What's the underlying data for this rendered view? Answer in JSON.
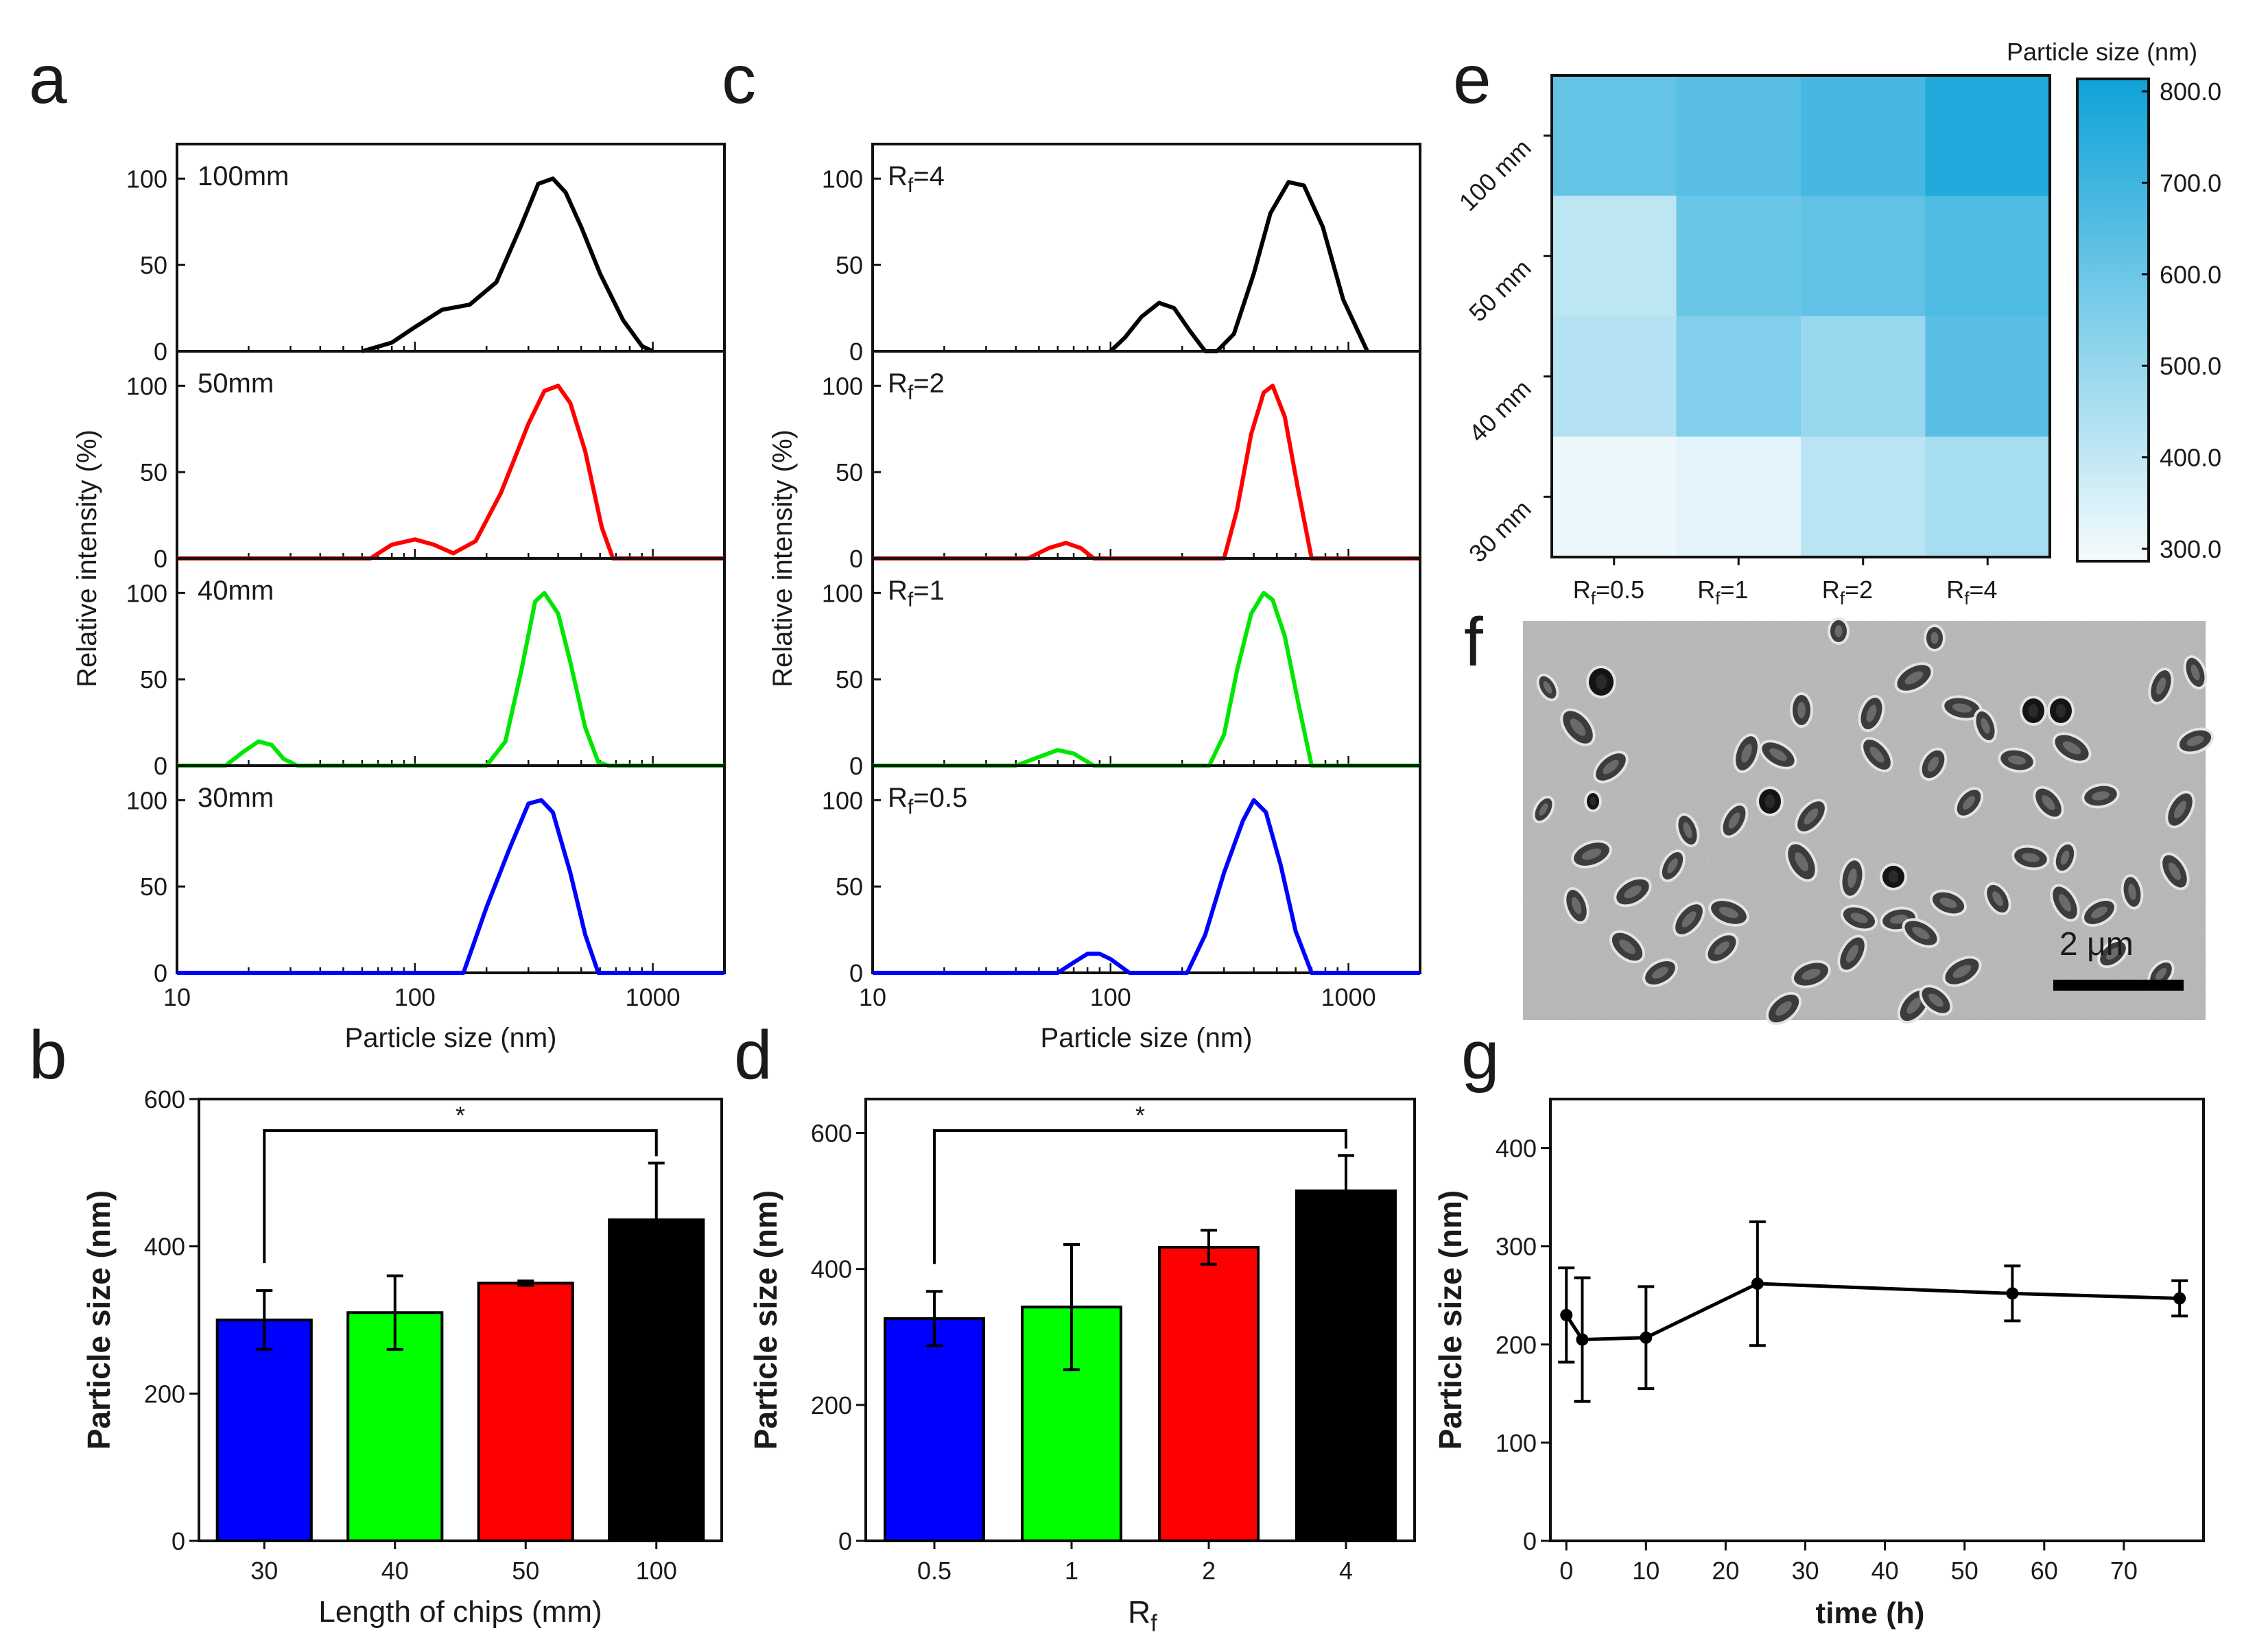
{
  "panel_labels": {
    "a": "a",
    "b": "b",
    "c": "c",
    "d": "d",
    "e": "e",
    "f": "f",
    "g": "g"
  },
  "chart_data": [
    {
      "panel": "a",
      "type": "line",
      "xscale": "log",
      "xlim": [
        10,
        2000
      ],
      "ylim": [
        0,
        120
      ],
      "xticks": [
        "10",
        "100",
        "1000"
      ],
      "yticks": [
        "0",
        "50",
        "100"
      ],
      "xlabel": "Particle size (nm)",
      "ylabel": "Relative intensity (%)",
      "series": [
        {
          "name": "100mm",
          "color": "#000000",
          "x": [
            60,
            80,
            100,
            130,
            170,
            220,
            280,
            330,
            380,
            430,
            500,
            600,
            750,
            900,
            1000
          ],
          "y": [
            0,
            5,
            14,
            24,
            27,
            40,
            73,
            97,
            100,
            92,
            72,
            45,
            18,
            3,
            0
          ]
        },
        {
          "name": "50mm",
          "color": "#ff0000",
          "x": [
            10,
            65,
            80,
            100,
            120,
            145,
            180,
            230,
            300,
            350,
            400,
            450,
            520,
            610,
            680,
            2000
          ],
          "y": [
            0,
            0,
            8,
            11,
            8,
            3,
            10,
            38,
            78,
            97,
            100,
            90,
            62,
            18,
            0,
            0
          ]
        },
        {
          "name": "40mm",
          "color": "#00e600",
          "x": [
            10,
            16,
            19,
            22,
            25,
            28,
            32,
            200,
            240,
            280,
            320,
            350,
            400,
            450,
            520,
            590,
            650,
            2000
          ],
          "y": [
            0,
            0,
            8,
            14,
            12,
            4,
            0,
            0,
            14,
            55,
            95,
            100,
            88,
            60,
            22,
            2,
            0,
            0
          ]
        },
        {
          "name": "30mm",
          "color": "#0000ff",
          "x": [
            10,
            160,
            200,
            250,
            300,
            340,
            380,
            450,
            520,
            590,
            2000
          ],
          "y": [
            0,
            0,
            38,
            72,
            98,
            100,
            93,
            58,
            22,
            0,
            0
          ]
        }
      ],
      "labels": [
        "100mm",
        "50mm",
        "40mm",
        "30mm"
      ]
    },
    {
      "panel": "c",
      "type": "line",
      "xscale": "log",
      "xlim": [
        10,
        2000
      ],
      "ylim": [
        0,
        120
      ],
      "xticks": [
        "10",
        "100",
        "1000"
      ],
      "yticks": [
        "0",
        "50",
        "100"
      ],
      "xlabel": "Particle size (nm)",
      "ylabel": "Relative intensity (%)",
      "series": [
        {
          "name": "Rf=4",
          "color": "#000000",
          "x": [
            100,
            115,
            135,
            160,
            185,
            215,
            250,
            280,
            330,
            400,
            470,
            560,
            650,
            780,
            950,
            1200
          ],
          "y": [
            0,
            8,
            20,
            28,
            25,
            12,
            0,
            0,
            10,
            45,
            80,
            98,
            96,
            72,
            30,
            0
          ]
        },
        {
          "name": "Rf=2",
          "color": "#ff0000",
          "x": [
            10,
            45,
            55,
            65,
            75,
            85,
            300,
            340,
            390,
            440,
            480,
            540,
            610,
            700,
            2000
          ],
          "y": [
            0,
            0,
            6,
            9,
            6,
            0,
            0,
            28,
            72,
            96,
            100,
            82,
            42,
            0,
            0
          ]
        },
        {
          "name": "Rf=1",
          "color": "#00e600",
          "x": [
            10,
            40,
            50,
            60,
            70,
            85,
            260,
            300,
            340,
            390,
            440,
            480,
            540,
            620,
            700,
            2000
          ],
          "y": [
            0,
            0,
            5,
            9,
            7,
            0,
            0,
            18,
            55,
            88,
            100,
            96,
            75,
            34,
            0,
            0
          ]
        },
        {
          "name": "Rf=0.5",
          "color": "#0000ff",
          "x": [
            10,
            60,
            70,
            80,
            90,
            100,
            120,
            210,
            250,
            300,
            360,
            400,
            450,
            520,
            600,
            700,
            2000
          ],
          "y": [
            0,
            0,
            6,
            11,
            11,
            8,
            0,
            0,
            22,
            58,
            88,
            100,
            93,
            62,
            24,
            0,
            0
          ]
        }
      ],
      "labels": [
        {
          "main": "R",
          "sub": "f",
          "rest": "=4"
        },
        {
          "main": "R",
          "sub": "f",
          "rest": "=2"
        },
        {
          "main": "R",
          "sub": "f",
          "rest": "=1"
        },
        {
          "main": "R",
          "sub": "f",
          "rest": "=0.5"
        }
      ]
    },
    {
      "panel": "b",
      "type": "bar",
      "categories": [
        "30",
        "40",
        "50",
        "100"
      ],
      "values": [
        300,
        310,
        350,
        436
      ],
      "errors": [
        40,
        50,
        3,
        77
      ],
      "colors": [
        "#0000ff",
        "#00ff00",
        "#ff0000",
        "#000000"
      ],
      "ylim": [
        0,
        600
      ],
      "yticks": [
        "0",
        "200",
        "400",
        "600"
      ],
      "xlabel": "Length of chips (mm)",
      "ylabel": "Particle size (nm)",
      "significance": {
        "from": 0,
        "to": 3,
        "label": "*"
      }
    },
    {
      "panel": "d",
      "type": "bar",
      "categories": [
        "0.5",
        "1",
        "2",
        "4"
      ],
      "values": [
        327,
        344,
        432,
        515
      ],
      "errors": [
        40,
        92,
        25,
        52
      ],
      "colors": [
        "#0000ff",
        "#00ff00",
        "#ff0000",
        "#000000"
      ],
      "ylim": [
        0,
        650
      ],
      "yticks": [
        "0",
        "200",
        "400",
        "600"
      ],
      "xlabel": {
        "main": "R",
        "sub": "f"
      },
      "ylabel": "Particle size (nm)",
      "significance": {
        "from": 0,
        "to": 3,
        "label": "*"
      }
    },
    {
      "panel": "e",
      "type": "heatmap",
      "rows": [
        "100 mm",
        "50 mm",
        "40 mm",
        "30 mm"
      ],
      "cols": [
        {
          "main": "R",
          "sub": "f",
          "rest": "=0.5"
        },
        {
          "main": "R",
          "sub": "f",
          "rest": "=1"
        },
        {
          "main": "R",
          "sub": "f",
          "rest": "=2"
        },
        {
          "main": "R",
          "sub": "f",
          "rest": "=4"
        }
      ],
      "values": [
        [
          610,
          640,
          680,
          760
        ],
        [
          420,
          600,
          620,
          660
        ],
        [
          440,
          550,
          500,
          640
        ],
        [
          320,
          340,
          430,
          470
        ]
      ],
      "vmin": 300,
      "vmax": 800,
      "colorbar_title": "Particle size (nm)",
      "colorbar_ticks": [
        "800.0",
        "700.0",
        "600.0",
        "500.0",
        "400.0",
        "300.0"
      ],
      "color_low": "#f4fbfc",
      "color_high": "#0ea2d8"
    },
    {
      "panel": "g",
      "type": "line",
      "x": [
        0,
        2,
        10,
        24,
        56,
        77
      ],
      "y": [
        230,
        205,
        207,
        262,
        252,
        247
      ],
      "errors": [
        48,
        63,
        52,
        63,
        28,
        18
      ],
      "xlim": [
        -2,
        80
      ],
      "ylim": [
        0,
        450
      ],
      "xticks": [
        "0",
        "10",
        "20",
        "30",
        "40",
        "50",
        "60",
        "70"
      ],
      "yticks": [
        "0",
        "100",
        "200",
        "300",
        "400"
      ],
      "xlabel": "time (h)",
      "ylabel": "Particle size (nm)"
    }
  ],
  "micrograph": {
    "scale_label": "2 μm"
  }
}
